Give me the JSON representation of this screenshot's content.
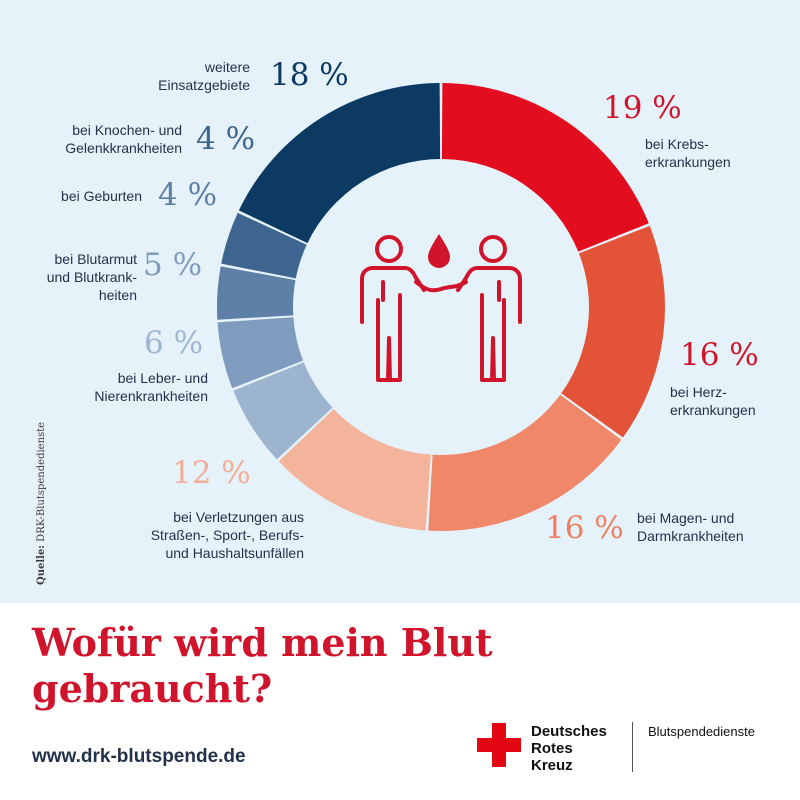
{
  "chart_data": {
    "type": "pie",
    "title": "Wofür wird mein Blut gebraucht?",
    "slices": [
      {
        "label": "bei Krebserkrankungen",
        "label_text": "bei Krebs-\nerkrankungen",
        "value": 19,
        "pct_text": "19 %",
        "color": "#e20d1f",
        "pct_color": "#d0142c"
      },
      {
        "label": "bei Herzerkrankungen",
        "label_text": "bei Herz-\nerkrankungen",
        "value": 16,
        "pct_text": "16 %",
        "color": "#e35338",
        "pct_color": "#d0142c"
      },
      {
        "label": "bei Magen- und Darmkrankheiten",
        "label_text": "bei Magen- und\nDarmkrankheiten",
        "value": 16,
        "pct_text": "16 %",
        "color": "#f08769",
        "pct_color": "#ee8064"
      },
      {
        "label": "bei Verletzungen aus Straßen-, Sport-, Berufs- und Haushaltsunfällen",
        "label_text": "bei Verletzungen aus\nStraßen-, Sport-, Berufs-\nund Haushaltsunfällen",
        "value": 12,
        "pct_text": "12 %",
        "color": "#f4b49b",
        "pct_color": "#f2ae96"
      },
      {
        "label": "bei Leber- und Nierenkrankheiten",
        "label_text": "bei Leber- und\nNierenkrankheiten",
        "value": 6,
        "pct_text": "6 %",
        "color": "#9db4cf",
        "pct_color": "#9fb5d0"
      },
      {
        "label": "bei Blutarmut und Blutkrankheiten",
        "label_text": "bei Blutarmut\nund Blutkrank-\nheiten",
        "value": 5,
        "pct_text": "5 %",
        "color": "#7f9bbd",
        "pct_color": "#7f9bbd"
      },
      {
        "label": "bei Geburten",
        "label_text": "bei Geburten",
        "value": 4,
        "pct_text": "4 %",
        "color": "#5e7fa6",
        "pct_color": "#5e7fa6"
      },
      {
        "label": "bei Knochen- und Gelenkkrankheiten",
        "label_text": "bei Knochen- und\nGelenkkrankheiten",
        "value": 4,
        "pct_text": "4 %",
        "color": "#3d6590",
        "pct_color": "#3d6590"
      },
      {
        "label": "weitere Einsatzgebiete",
        "label_text": "weitere\nEinsatzgebiete",
        "value": 18,
        "pct_text": "18 %",
        "color": "#0c3a63",
        "pct_color": "#0c3a63"
      }
    ],
    "center_icon": "two-people-blood-drop-icon",
    "icon_color": "#d0142c",
    "background_color": "#e6f2fa"
  },
  "page": {
    "title": "Wofür wird mein Blut gebraucht?",
    "url": "www.drk-blutspende.de",
    "source_prefix": "Quelle:",
    "source_text": " DRK-Blutspendedienste"
  },
  "brand": {
    "logo_icon": "red-cross-icon",
    "name": "Deutsches\nRotes\nKreuz",
    "service": "Blutspendedienste",
    "color": "#e30613"
  }
}
